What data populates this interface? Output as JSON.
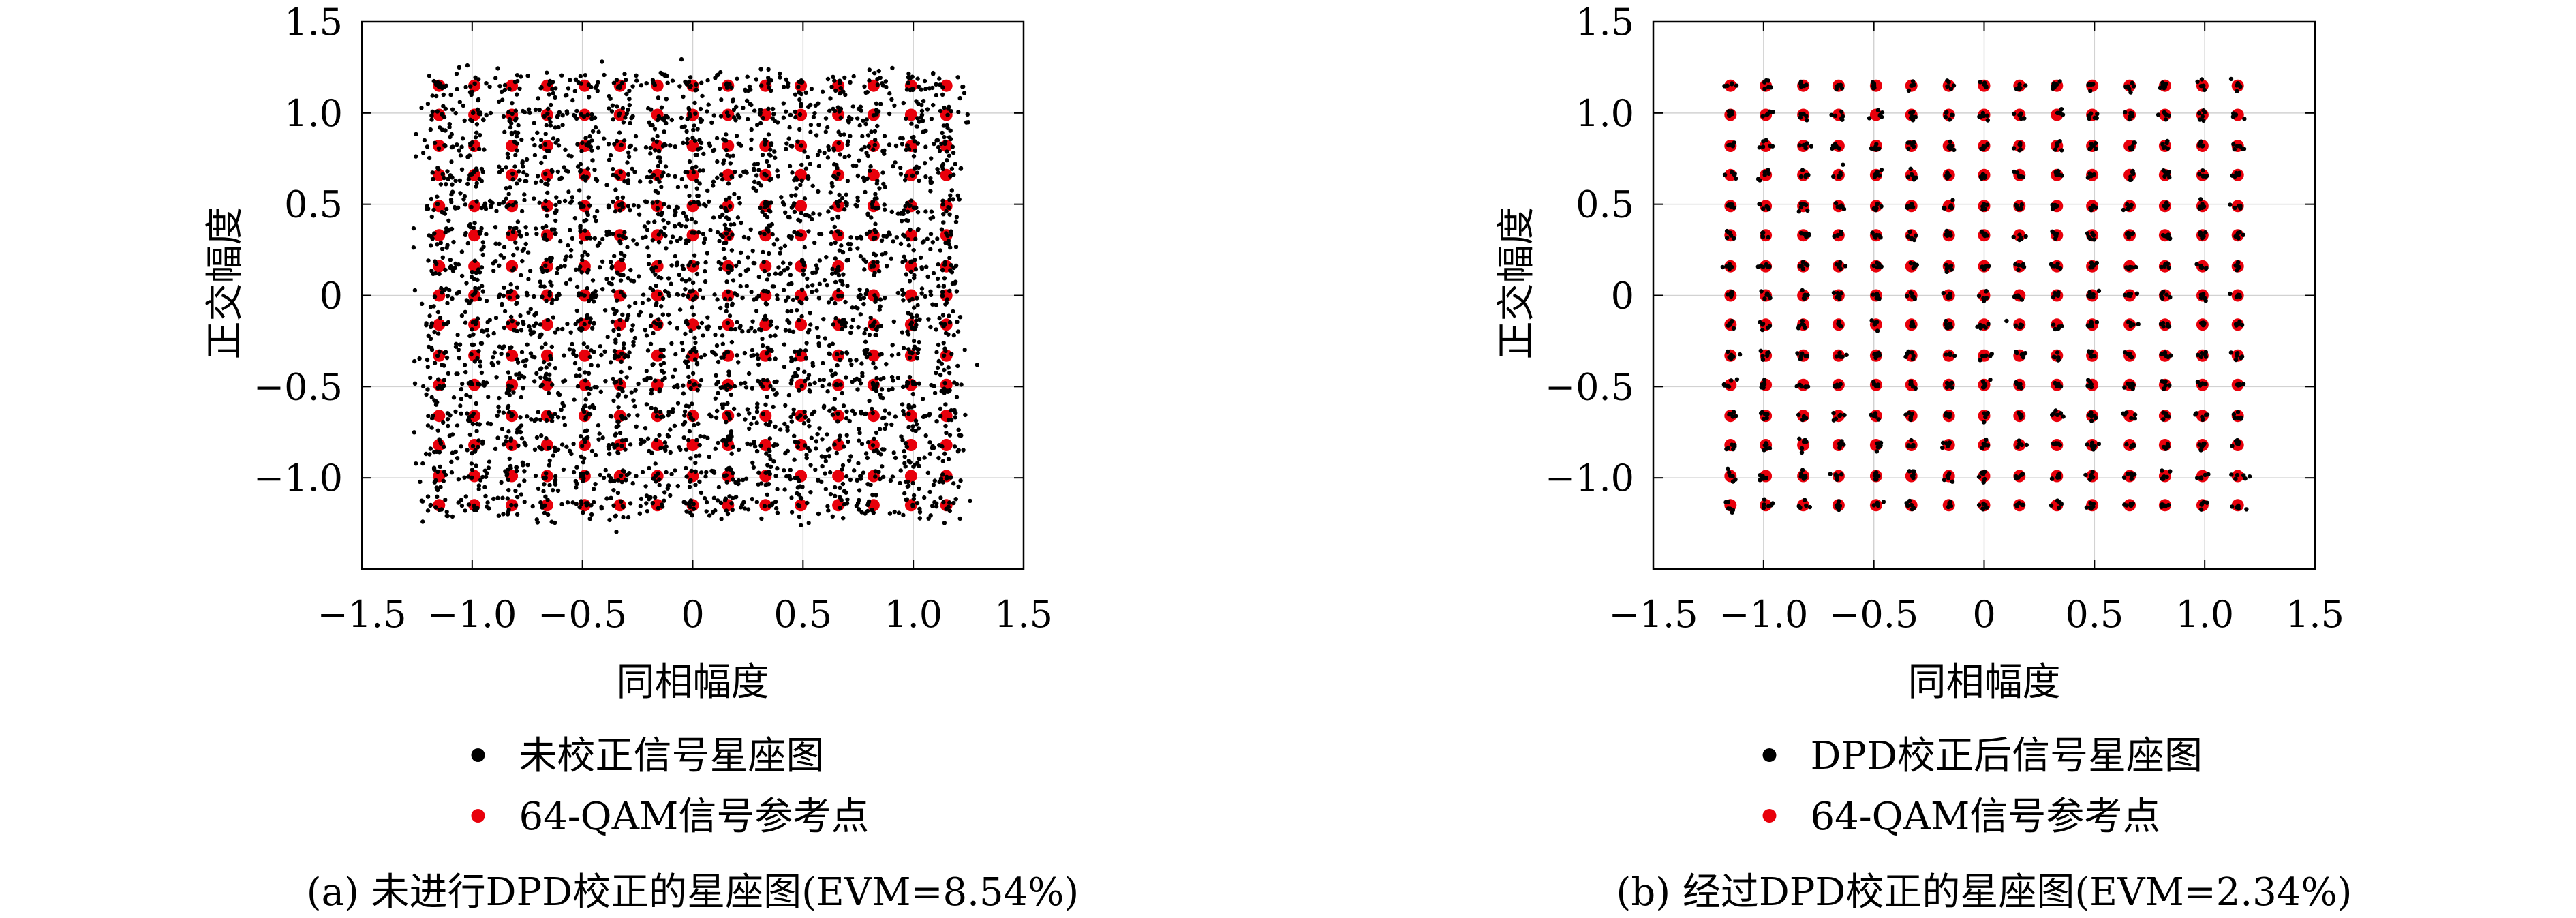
{
  "chart_data": [
    {
      "type": "scatter",
      "caption": "(a) 未进行DPD校正的星座图(EVM=8.54%)",
      "xlabel": "同相幅度",
      "ylabel": "正交幅度",
      "xlim": [
        -1.5,
        1.5
      ],
      "ylim": [
        -1.5,
        1.5
      ],
      "xticks": [
        -1.5,
        -1.0,
        -0.5,
        0,
        0.5,
        1.0,
        1.5
      ],
      "yticks": [
        -1.0,
        -0.5,
        0,
        0.5,
        1.0,
        1.5
      ],
      "xtick_labels": [
        "−1.5",
        "−1.0",
        "−0.5",
        "0",
        "0.5",
        "1.0",
        "1.5"
      ],
      "ytick_labels": [
        "−1.0",
        "−0.5",
        "0",
        "0.5",
        "1.0",
        "1.5"
      ],
      "grid": true,
      "legend_position": "below",
      "reference_levels": [
        -1.15,
        -0.99,
        -0.82,
        -0.66,
        -0.49,
        -0.33,
        -0.16,
        0.0,
        0.16,
        0.33,
        0.49,
        0.66,
        0.82,
        0.99,
        1.15
      ],
      "series": [
        {
          "name": "未校正信号星座图",
          "color": "#000000",
          "points_per_symbol": 16,
          "spread": 0.045
        },
        {
          "name": "64-QAM信号参考点",
          "color": "#e8000b"
        }
      ]
    },
    {
      "type": "scatter",
      "caption": "(b) 经过DPD校正的星座图(EVM=2.34%)",
      "xlabel": "同相幅度",
      "ylabel": "正交幅度",
      "xlim": [
        -1.5,
        1.5
      ],
      "ylim": [
        -1.5,
        1.5
      ],
      "xticks": [
        -1.5,
        -1.0,
        -0.5,
        0,
        0.5,
        1.0,
        1.5
      ],
      "yticks": [
        -1.0,
        -0.5,
        0,
        0.5,
        1.0,
        1.5
      ],
      "xtick_labels": [
        "−1.5",
        "−1.0",
        "−0.5",
        "0",
        "0.5",
        "1.0",
        "1.5"
      ],
      "ytick_labels": [
        "−1.0",
        "−0.5",
        "0",
        "0.5",
        "1.0",
        "1.5"
      ],
      "grid": true,
      "legend_position": "below",
      "reference_levels": [
        -1.15,
        -0.99,
        -0.82,
        -0.66,
        -0.49,
        -0.33,
        -0.16,
        0.0,
        0.16,
        0.33,
        0.49,
        0.66,
        0.82,
        0.99,
        1.15
      ],
      "series": [
        {
          "name": "DPD校正后信号星座图",
          "color": "#000000",
          "points_per_symbol": 6,
          "spread": 0.012
        },
        {
          "name": "64-QAM信号参考点",
          "color": "#e8000b"
        }
      ]
    }
  ]
}
